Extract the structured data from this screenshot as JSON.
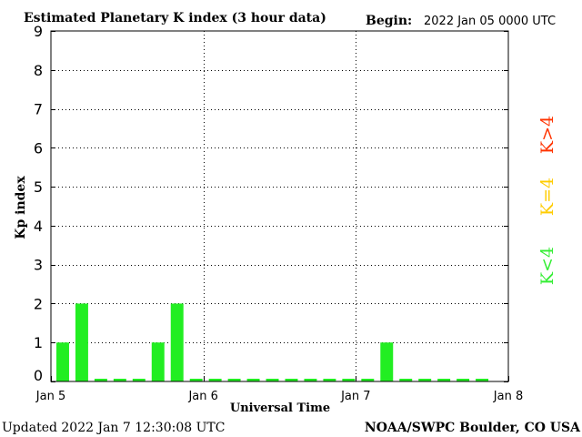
{
  "header": {
    "title": "Estimated Planetary K index (3 hour data)",
    "begin_label": "Begin:",
    "begin_value": "2022 Jan 05 0000 UTC"
  },
  "footer": {
    "updated": "Updated 2022 Jan  7 12:30:08 UTC",
    "source": "NOAA/SWPC Boulder, CO USA"
  },
  "legend": [
    {
      "label": "K>4",
      "color": "#ff3300"
    },
    {
      "label": "K=4",
      "color": "#ffcc00"
    },
    {
      "label": "K<4",
      "color": "#33ee33"
    }
  ],
  "chart_data": {
    "type": "bar",
    "title": "Estimated Planetary K index (3 hour data)",
    "xlabel": "Universal Time",
    "ylabel": "Kp index",
    "x_tick_labels": [
      "Jan 5",
      "Jan 6",
      "Jan 7",
      "Jan 8"
    ],
    "y_tick_labels": [
      "0",
      "1",
      "2",
      "3",
      "4",
      "5",
      "6",
      "7",
      "8",
      "9"
    ],
    "ylim": [
      0,
      9
    ],
    "x_range_hours": [
      0,
      72
    ],
    "interval_hours": 3,
    "grid": "dotted, at day boundaries and each integer Kp",
    "bar_color": "#22ee22",
    "values": [
      1,
      2,
      0,
      0,
      0,
      1,
      2,
      0,
      0,
      0,
      0,
      0,
      0,
      0,
      0,
      0,
      0,
      1,
      0,
      0,
      0,
      0,
      0
    ]
  }
}
